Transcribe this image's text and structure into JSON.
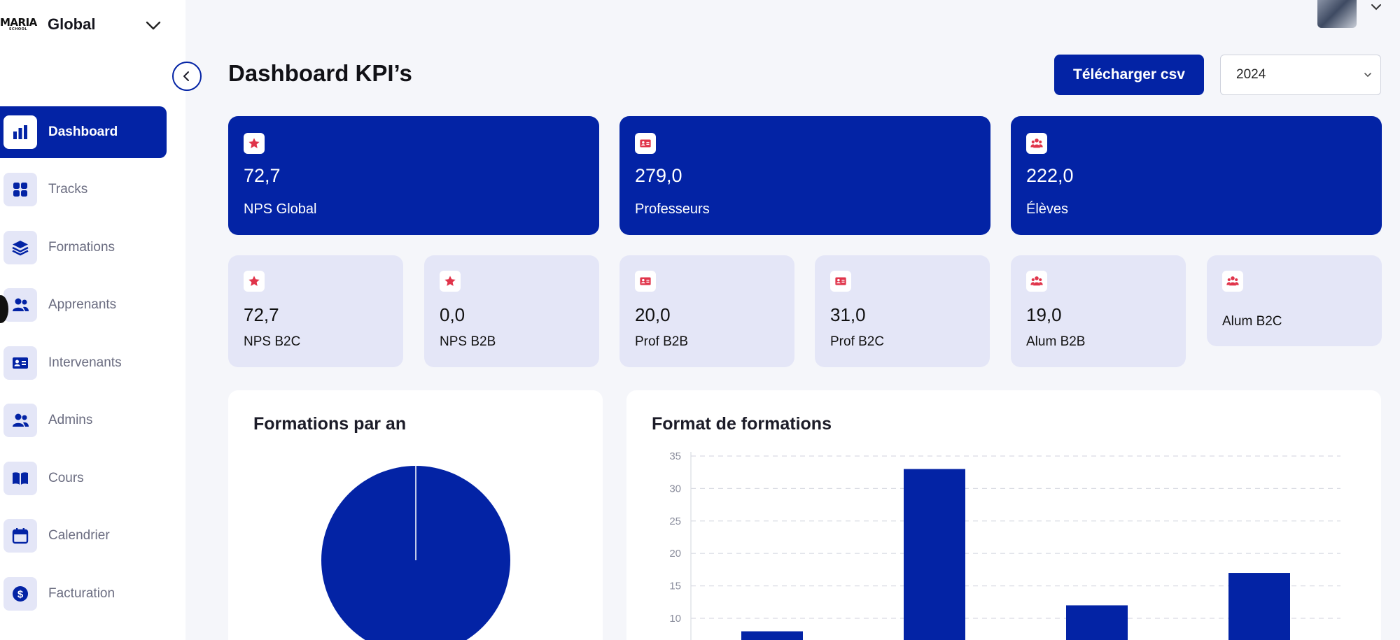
{
  "brand": {
    "logo_text": "MARIA",
    "logo_sub": "SCHOOL",
    "workspace": "Global"
  },
  "nav": {
    "items": [
      {
        "label": "Dashboard",
        "icon": "bar-chart-icon",
        "active": true
      },
      {
        "label": "Tracks",
        "icon": "grid-icon"
      },
      {
        "label": "Formations",
        "icon": "layers-icon"
      },
      {
        "label": "Apprenants",
        "icon": "users-icon"
      },
      {
        "label": "Intervenants",
        "icon": "id-card-icon"
      },
      {
        "label": "Admins",
        "icon": "users-icon"
      },
      {
        "label": "Cours",
        "icon": "book-icon"
      },
      {
        "label": "Calendrier",
        "icon": "calendar-icon"
      },
      {
        "label": "Facturation",
        "icon": "dollar-icon"
      }
    ]
  },
  "header": {
    "title": "Dashboard KPI’s",
    "download_label": "Télécharger csv",
    "year": "2024"
  },
  "kpi_main": [
    {
      "value": "72,7",
      "label": "NPS Global",
      "icon": "star-icon"
    },
    {
      "value": "279,0",
      "label": "Professeurs",
      "icon": "id-card-icon"
    },
    {
      "value": "222,0",
      "label": "Élèves",
      "icon": "users-icon"
    }
  ],
  "kpi_sub": [
    {
      "value": "72,7",
      "label": "NPS B2C",
      "icon": "star-icon"
    },
    {
      "value": "0,0",
      "label": "NPS B2B",
      "icon": "star-icon"
    },
    {
      "value": "20,0",
      "label": "Prof B2B",
      "icon": "id-card-icon"
    },
    {
      "value": "31,0",
      "label": "Prof B2C",
      "icon": "id-card-icon"
    },
    {
      "value": "19,0",
      "label": "Alum B2B",
      "icon": "users-icon"
    },
    {
      "value": "",
      "label": "Alum B2C",
      "icon": "users-icon"
    }
  ],
  "colors": {
    "primary": "#0323a5",
    "soft": "#e4e6f7",
    "icon_accent": "#e0344a"
  },
  "chart_data": [
    {
      "type": "pie",
      "title": "Formations par an",
      "slices": [
        {
          "label": "",
          "value": 100
        }
      ]
    },
    {
      "type": "bar",
      "title": "Format de formations",
      "categories": [
        "",
        "",
        "",
        ""
      ],
      "values": [
        8,
        33,
        12,
        17
      ],
      "ylim": [
        0,
        35
      ],
      "yticks": [
        10,
        15,
        20,
        25,
        30,
        35
      ],
      "grid": true
    }
  ]
}
